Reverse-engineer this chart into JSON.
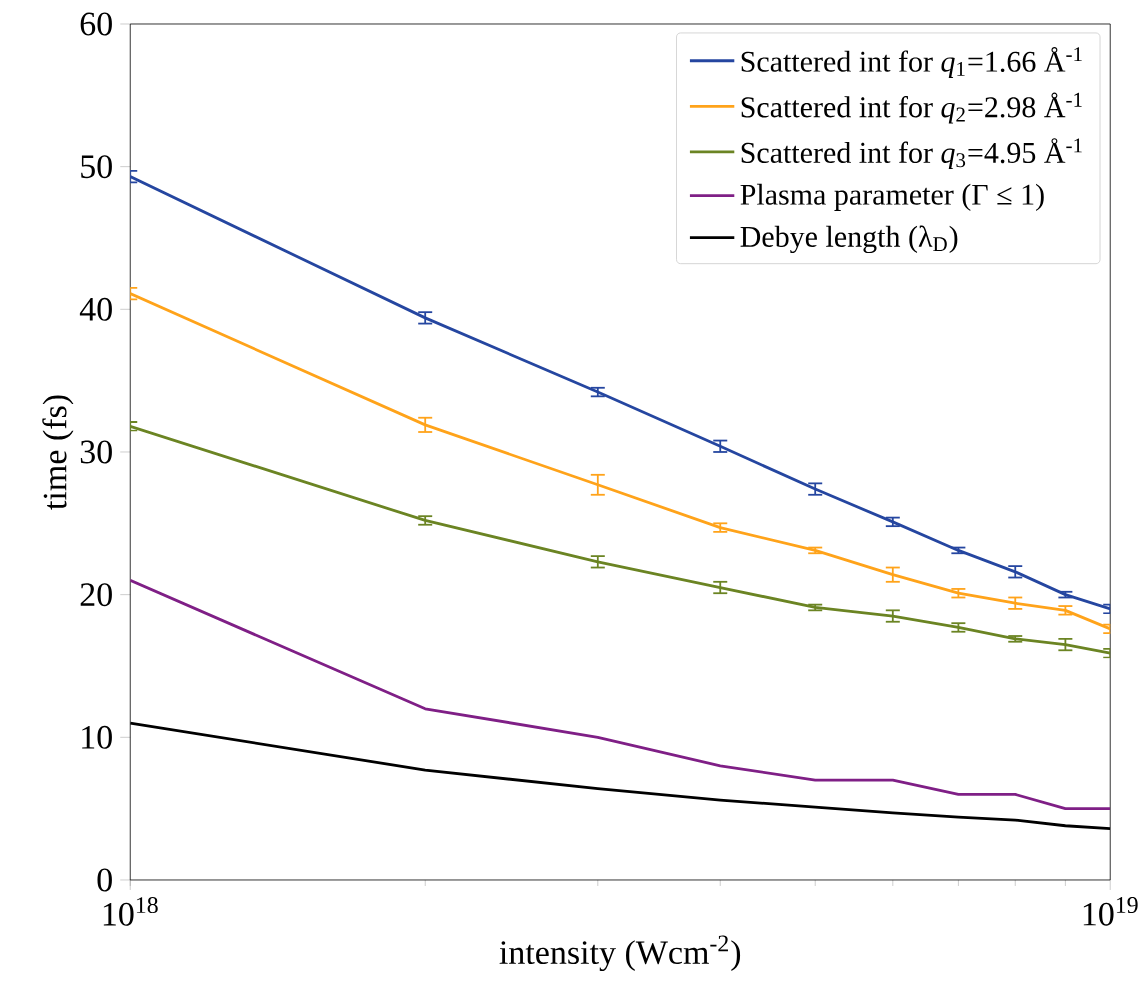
{
  "chart_data": {
    "type": "line",
    "xlabel": "intensity (Wcm$^{-2}$)",
    "ylabel": "time (fs)",
    "x": [
      1e+18,
      2e+18,
      3e+18,
      4e+18,
      5e+18,
      6e+18,
      7e+18,
      8e+18,
      9e+18,
      1e+19
    ],
    "series": [
      {
        "name": "Scattered int for *q*$_{1}$=1.66 Å$^{-1}$",
        "color": "#2546a0",
        "values": [
          49.3,
          39.4,
          34.2,
          30.4,
          27.4,
          25.1,
          23.1,
          21.6,
          20.0,
          19.0
        ],
        "errors": [
          0.4,
          0.4,
          0.3,
          0.4,
          0.4,
          0.3,
          0.2,
          0.4,
          0.2,
          0.3
        ]
      },
      {
        "name": "Scattered int for *q*$_{2}$=2.98 Å$^{-1}$",
        "color": "#ffa31a",
        "values": [
          41.1,
          31.9,
          27.7,
          24.7,
          23.1,
          21.4,
          20.1,
          19.4,
          18.9,
          17.6
        ],
        "errors": [
          0.4,
          0.5,
          0.7,
          0.3,
          0.2,
          0.5,
          0.3,
          0.4,
          0.3,
          0.3
        ]
      },
      {
        "name": "Scattered int for *q*$_{3}$=4.95 Å$^{-1}$",
        "color": "#6b8423",
        "values": [
          31.8,
          25.2,
          22.3,
          20.5,
          19.1,
          18.5,
          17.7,
          16.9,
          16.5,
          15.9
        ],
        "errors": [
          0.3,
          0.3,
          0.4,
          0.4,
          0.2,
          0.4,
          0.3,
          0.2,
          0.4,
          0.3
        ]
      },
      {
        "name": "Plasma parameter (Γ ≤ 1)",
        "color": "#7f1f86",
        "values": [
          21,
          12,
          10,
          8,
          7,
          7,
          6,
          6,
          5,
          5
        ]
      },
      {
        "name": "Debye length (λ$_{D}$)",
        "color": "#000000",
        "values": [
          11.0,
          7.7,
          6.4,
          5.6,
          5.1,
          4.7,
          4.4,
          4.2,
          3.8,
          3.6
        ]
      }
    ],
    "xlim": [
      1e+18,
      1e+19
    ],
    "ylim": [
      0,
      60
    ],
    "xticks": [
      {
        "value": 1e+18,
        "label": "10$^{18}$"
      },
      {
        "value": 1e+19,
        "label": "10$^{19}$"
      }
    ],
    "yticks": [
      0,
      10,
      20,
      30,
      40,
      50,
      60
    ],
    "log": "x",
    "legend": "top right",
    "marker": "none",
    "line_style": "solid"
  }
}
